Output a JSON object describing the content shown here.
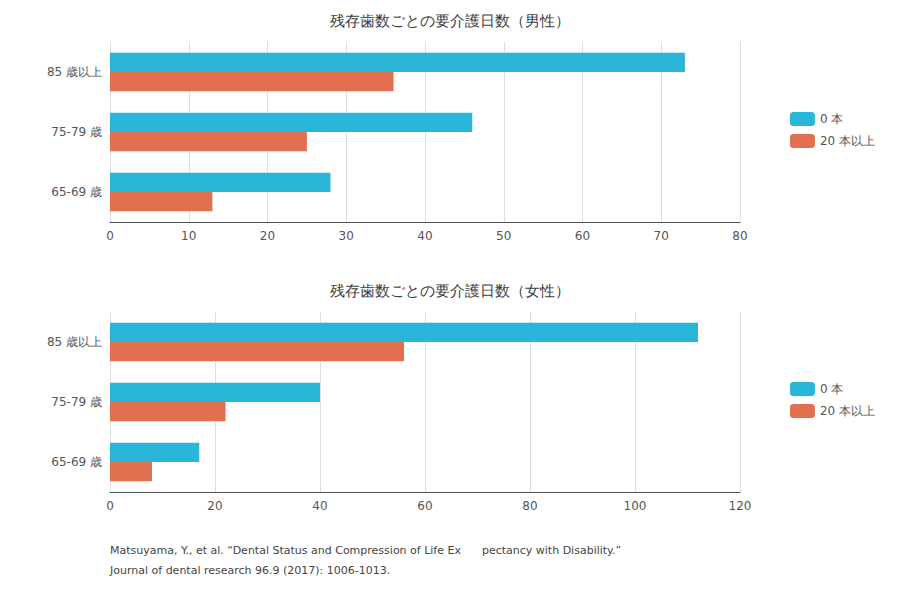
{
  "chart_data": [
    {
      "type": "bar",
      "orientation": "horizontal",
      "title": "残存歯数ごとの要介護日数（男性）",
      "categories": [
        "65-69 歳",
        "75-79 歳",
        "85 歳以上"
      ],
      "series": [
        {
          "name": "0 本",
          "color": "#29B6D8",
          "values": [
            28,
            46,
            73
          ]
        },
        {
          "name": "20 本以上",
          "color": "#E07050",
          "values": [
            13,
            25,
            36
          ]
        }
      ],
      "xlim": [
        0,
        80
      ],
      "xticks": [
        0,
        10,
        20,
        30,
        40,
        50,
        60,
        70,
        80
      ],
      "grid": true,
      "legend": "right"
    },
    {
      "type": "bar",
      "orientation": "horizontal",
      "title": "残存歯数ごとの要介護日数（女性）",
      "categories": [
        "65-69 歳",
        "75-79 歳",
        "85 歳以上"
      ],
      "series": [
        {
          "name": "0 本",
          "color": "#29B6D8",
          "values": [
            17,
            40,
            112
          ]
        },
        {
          "name": "20 本以上",
          "color": "#E07050",
          "values": [
            8,
            22,
            56
          ]
        }
      ],
      "xlim": [
        0,
        120
      ],
      "xticks": [
        0,
        20,
        40,
        60,
        80,
        100,
        120
      ],
      "grid": true,
      "legend": "right",
      "annotations": [
        "Matsuyama, Y., et al. “Dental Status and Compression of Life Ex      pectancy with Disability.”",
        "Journal of dental research 96.9 (2017): 1006-1013."
      ]
    }
  ]
}
